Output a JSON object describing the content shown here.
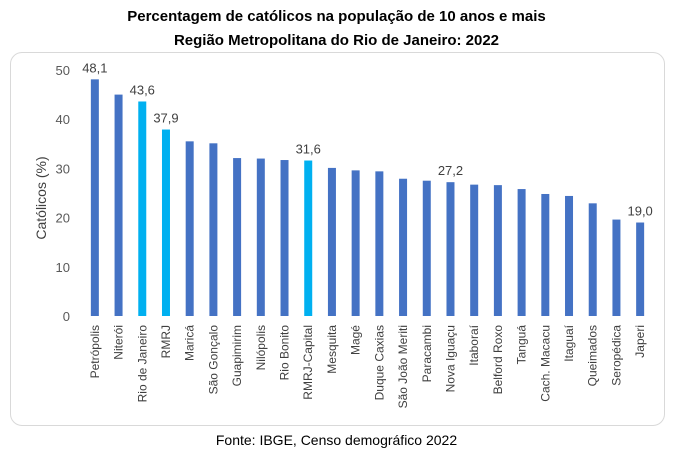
{
  "chart_data": {
    "type": "bar",
    "title": "Percentagem de católicos na população de 10 anos e mais",
    "subtitle": "Região Metropolitana do Rio de Janeiro: 2022",
    "ylabel": "Católicos (%)",
    "xlabel": "",
    "ylim": [
      0,
      50
    ],
    "yticks": [
      0,
      10,
      20,
      30,
      40,
      50
    ],
    "grid": false,
    "categories": [
      "Petrópolis",
      "Niterói",
      "Rio de Janeiro",
      "RMRJ",
      "Maricá",
      "São Gonçalo",
      "Guapimirim",
      "Nilópolis",
      "Rio Bonito",
      "RMRJ-Capital",
      "Mesquita",
      "Magé",
      "Duque Caxias",
      "São João Meriti",
      "Paracambi",
      "Nova Iguaçu",
      "Itaboraí",
      "Belford Roxo",
      "Tanguá",
      "Cach. Macacu",
      "Itaguaí",
      "Queimados",
      "Seropédica",
      "Japeri"
    ],
    "values": [
      48.1,
      45.0,
      43.6,
      37.9,
      35.5,
      35.1,
      32.1,
      32.0,
      31.7,
      31.6,
      30.1,
      29.6,
      29.4,
      27.9,
      27.5,
      27.2,
      26.7,
      26.6,
      25.8,
      24.8,
      24.4,
      22.9,
      19.6,
      19.0
    ],
    "data_labels": {
      "0": "48,1",
      "2": "43,6",
      "3": "37,9",
      "9": "31,6",
      "15": "27,2",
      "23": "19,0"
    },
    "highlighted": [
      2,
      3,
      9
    ],
    "colors": {
      "default": "#4472C4",
      "highlight": "#00B0F0"
    },
    "source": "Fonte: IBGE, Censo demográfico 2022"
  }
}
